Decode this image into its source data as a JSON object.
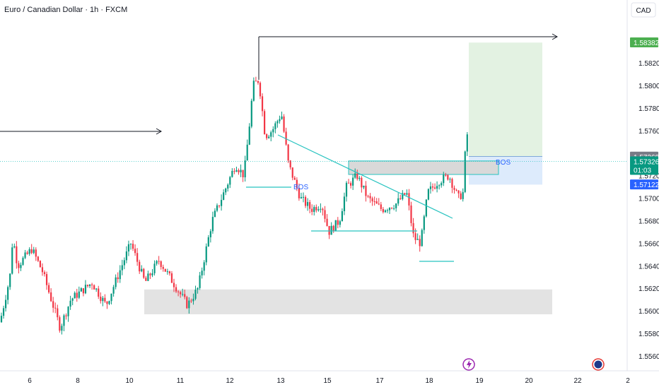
{
  "title": "Euro / Canadian Dollar · 1h · FXCM",
  "currency_label": "CAD",
  "colors": {
    "up": "#089981",
    "down": "#f23645",
    "zone_gray": "#d9d9d9",
    "target_green": "#d1e9cf",
    "stop_blue": "#cfe3fb",
    "teal_line": "#28c3c0",
    "arrow": "#131722",
    "price_tag_gray": "#787b86",
    "price_tag_green": "#089981",
    "price_tag_blue": "#2962ff",
    "price_tag_target": "#4caf50",
    "bos_text": "#2962ff"
  },
  "chart_data": {
    "type": "candlestick",
    "y_range": [
      1.555,
      1.585
    ],
    "y_ticks": [
      "1.58200",
      "1.58000",
      "1.57800",
      "1.57600",
      "1.57200",
      "1.57000",
      "1.56800",
      "1.56600",
      "1.56400",
      "1.56200",
      "1.56000",
      "1.55800",
      "1.55600"
    ],
    "x_ticks": [
      "6",
      "8",
      "10",
      "11",
      "12",
      "13",
      "15",
      "17",
      "18",
      "19",
      "20",
      "22",
      "2"
    ],
    "price_labels": {
      "target": "1.58382",
      "high": "1.57368",
      "current": "1.57326",
      "countdown": "01:03",
      "stop": "1.57122"
    },
    "annotations": {
      "bos_left": "BOS",
      "bos_right": "BOS"
    },
    "series_ohlc_description": "hourly EUR/CAD candles from ~1.5580 rising to peak ~1.5830, pulling back to ~1.5650, then breaking out to ~1.5765"
  }
}
